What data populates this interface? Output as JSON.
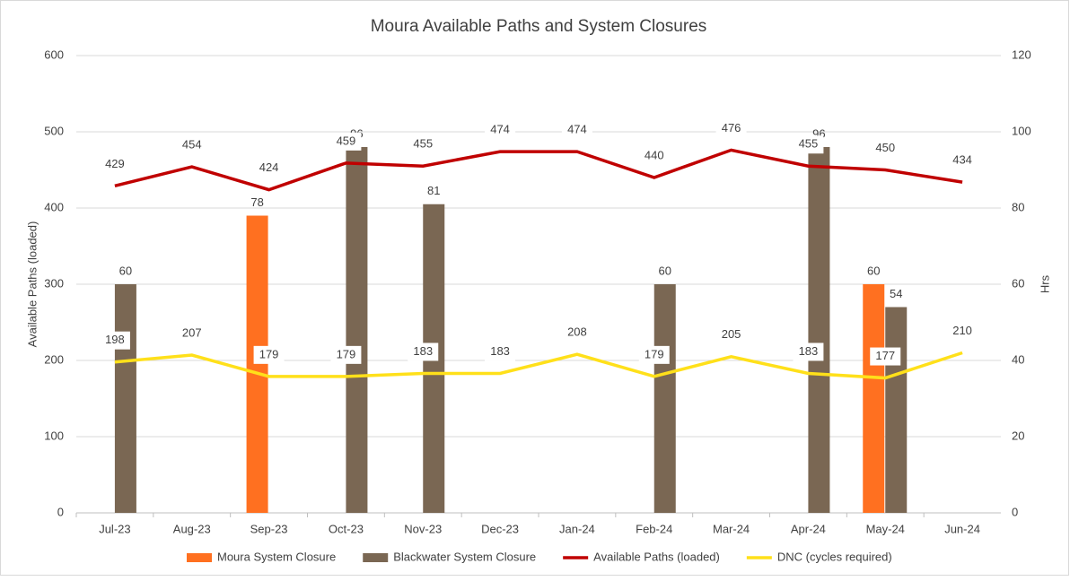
{
  "chart_data": {
    "type": "bar-line",
    "title": "Moura Available Paths and System Closures",
    "ylabel": "Available Paths (loaded)",
    "y2label": "Hrs",
    "categories": [
      "Jul-23",
      "Aug-23",
      "Sep-23",
      "Oct-23",
      "Nov-23",
      "Dec-23",
      "Jan-24",
      "Feb-24",
      "Mar-24",
      "Apr-24",
      "May-24",
      "Jun-24"
    ],
    "ylim": [
      0,
      600
    ],
    "yticks": [
      0,
      100,
      200,
      300,
      400,
      500,
      600
    ],
    "y2lim": [
      0,
      120
    ],
    "y2ticks": [
      0,
      20,
      40,
      60,
      80,
      100,
      120
    ],
    "grid": true,
    "legend": "bottom",
    "series": [
      {
        "name": "Moura System Closure",
        "type": "bar",
        "axis": "y2",
        "color": "#ff7020",
        "values": [
          null,
          null,
          78,
          null,
          null,
          null,
          null,
          null,
          null,
          null,
          60,
          null
        ]
      },
      {
        "name": "Blackwater System Closure",
        "type": "bar",
        "axis": "y2",
        "color": "#7a6753",
        "values": [
          60,
          null,
          null,
          96,
          81,
          null,
          null,
          60,
          null,
          96,
          54,
          null
        ]
      },
      {
        "name": "Available Paths (loaded)",
        "type": "line",
        "color": "#c00000",
        "values": [
          429,
          454,
          424,
          459,
          455,
          474,
          474,
          440,
          476,
          455,
          450,
          434
        ]
      },
      {
        "name": "DNC (cycles required)",
        "type": "line",
        "color": "#ffe01a",
        "values": [
          198,
          207,
          179,
          179,
          183,
          183,
          208,
          179,
          205,
          183,
          177,
          210
        ]
      }
    ]
  }
}
